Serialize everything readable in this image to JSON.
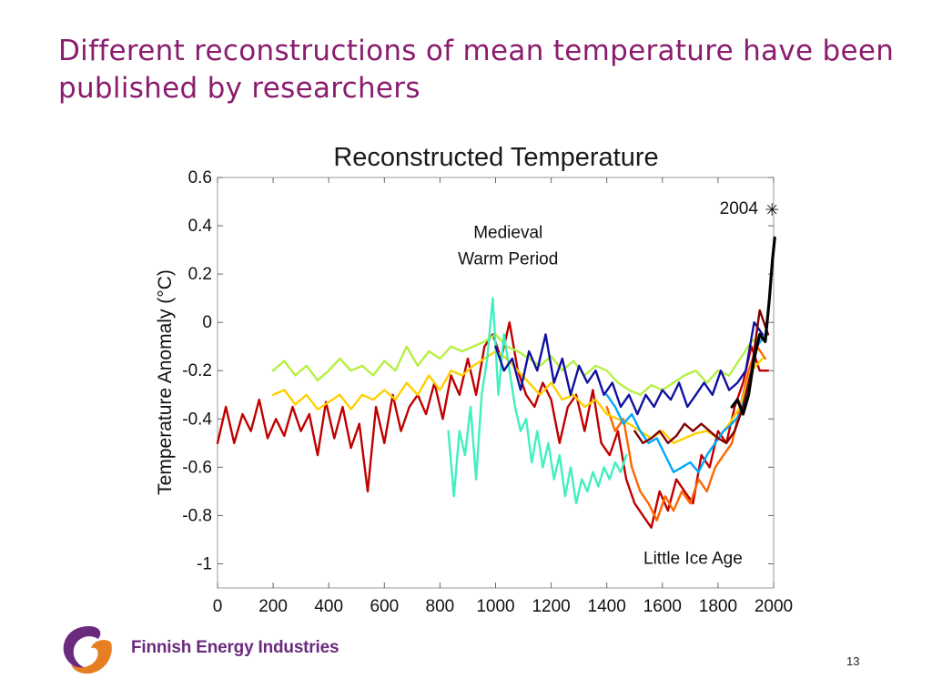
{
  "slide": {
    "title": "Different reconstructions of mean temperature have been published by researchers",
    "page_number": "13",
    "logo_text": "Finnish Energy Industries",
    "logo_colors": {
      "purple": "#6a2a7e",
      "orange": "#e67e22"
    }
  },
  "chart_data": {
    "type": "line",
    "title": "Reconstructed Temperature",
    "xlabel": "",
    "ylabel": "Temperature Anomaly (°C)",
    "xlim": [
      0,
      2000
    ],
    "ylim": [
      -1.1,
      0.6
    ],
    "x_ticks": [
      "0",
      "200",
      "400",
      "600",
      "800",
      "1000",
      "1200",
      "1400",
      "1600",
      "1800",
      "2000"
    ],
    "y_ticks": [
      "0.6",
      "0.4",
      "0.2",
      "0",
      "-0.2",
      "-0.4",
      "-0.6",
      "-0.8",
      "-1"
    ],
    "grid": false,
    "annotations": [
      {
        "text": "Medieval",
        "x": 1045,
        "y": 0.35
      },
      {
        "text": "Warm Period",
        "x": 1045,
        "y": 0.24
      },
      {
        "text": "Little Ice Age",
        "x": 1710,
        "y": -1.0
      },
      {
        "text": "2004",
        "x": 1875,
        "y": 0.45
      }
    ],
    "marker": {
      "symbol": "✳",
      "x": 2004,
      "y": 0.45
    },
    "series": [
      {
        "color": "#c00000",
        "x": [
          0,
          30,
          60,
          90,
          120,
          150,
          180,
          210,
          240,
          270,
          300,
          330,
          360,
          390,
          420,
          450,
          480,
          510,
          540,
          570,
          600,
          630,
          660,
          690,
          720,
          750,
          780,
          810,
          840,
          870,
          900,
          930,
          960,
          990,
          1020,
          1050,
          1080,
          1110,
          1140,
          1170,
          1200,
          1230,
          1260,
          1290,
          1320,
          1350,
          1380,
          1410,
          1440,
          1470,
          1500,
          1530,
          1560,
          1590,
          1620,
          1650,
          1680,
          1710,
          1740,
          1770,
          1800,
          1830,
          1860,
          1890,
          1920,
          1950,
          1980
        ],
        "y": [
          -0.5,
          -0.35,
          -0.5,
          -0.38,
          -0.45,
          -0.32,
          -0.48,
          -0.4,
          -0.47,
          -0.35,
          -0.45,
          -0.38,
          -0.55,
          -0.33,
          -0.48,
          -0.35,
          -0.52,
          -0.42,
          -0.7,
          -0.35,
          -0.5,
          -0.3,
          -0.45,
          -0.35,
          -0.3,
          -0.38,
          -0.25,
          -0.4,
          -0.22,
          -0.3,
          -0.15,
          -0.3,
          -0.1,
          -0.05,
          -0.15,
          0.0,
          -0.2,
          -0.3,
          -0.35,
          -0.25,
          -0.32,
          -0.5,
          -0.35,
          -0.3,
          -0.45,
          -0.28,
          -0.5,
          -0.55,
          -0.45,
          -0.65,
          -0.75,
          -0.8,
          -0.85,
          -0.7,
          -0.78,
          -0.65,
          -0.7,
          -0.75,
          -0.55,
          -0.6,
          -0.45,
          -0.5,
          -0.35,
          -0.25,
          -0.1,
          -0.2,
          -0.2
        ]
      },
      {
        "color": "#ff6600",
        "x": [
          1400,
          1430,
          1460,
          1490,
          1520,
          1550,
          1580,
          1610,
          1640,
          1670,
          1700,
          1730,
          1760,
          1790,
          1820,
          1850,
          1880,
          1910,
          1940,
          1970
        ],
        "y": [
          -0.35,
          -0.45,
          -0.4,
          -0.6,
          -0.7,
          -0.75,
          -0.82,
          -0.72,
          -0.78,
          -0.7,
          -0.75,
          -0.65,
          -0.7,
          -0.6,
          -0.55,
          -0.5,
          -0.35,
          -0.2,
          -0.1,
          -0.15
        ]
      },
      {
        "color": "#ffd000",
        "x": [
          200,
          240,
          280,
          320,
          360,
          400,
          440,
          480,
          520,
          560,
          600,
          640,
          680,
          720,
          760,
          800,
          840,
          880,
          920,
          960,
          1000,
          1040,
          1080,
          1120,
          1160,
          1200,
          1240,
          1280,
          1320,
          1360,
          1400,
          1440,
          1480,
          1520,
          1560,
          1600,
          1640,
          1680,
          1720,
          1760,
          1800,
          1840,
          1880,
          1920,
          1960
        ],
        "y": [
          -0.3,
          -0.28,
          -0.34,
          -0.3,
          -0.36,
          -0.33,
          -0.3,
          -0.36,
          -0.3,
          -0.32,
          -0.28,
          -0.32,
          -0.25,
          -0.3,
          -0.22,
          -0.28,
          -0.2,
          -0.22,
          -0.18,
          -0.15,
          -0.12,
          -0.15,
          -0.2,
          -0.25,
          -0.3,
          -0.25,
          -0.32,
          -0.3,
          -0.35,
          -0.32,
          -0.38,
          -0.4,
          -0.42,
          -0.45,
          -0.48,
          -0.45,
          -0.5,
          -0.48,
          -0.46,
          -0.45,
          -0.48,
          -0.42,
          -0.35,
          -0.2,
          -0.15
        ]
      },
      {
        "color": "#b5f041",
        "x": [
          200,
          240,
          280,
          320,
          360,
          400,
          440,
          480,
          520,
          560,
          600,
          640,
          680,
          720,
          760,
          800,
          840,
          880,
          920,
          960,
          1000,
          1040,
          1080,
          1120,
          1160,
          1200,
          1240,
          1280,
          1320,
          1360,
          1400,
          1440,
          1480,
          1520,
          1560,
          1600,
          1640,
          1680,
          1720,
          1760,
          1800,
          1840,
          1880,
          1920,
          1960
        ],
        "y": [
          -0.2,
          -0.16,
          -0.22,
          -0.18,
          -0.24,
          -0.2,
          -0.15,
          -0.2,
          -0.18,
          -0.22,
          -0.16,
          -0.2,
          -0.1,
          -0.18,
          -0.12,
          -0.15,
          -0.1,
          -0.12,
          -0.1,
          -0.08,
          -0.05,
          -0.1,
          -0.12,
          -0.15,
          -0.18,
          -0.14,
          -0.2,
          -0.16,
          -0.22,
          -0.18,
          -0.2,
          -0.25,
          -0.28,
          -0.3,
          -0.26,
          -0.28,
          -0.25,
          -0.22,
          -0.2,
          -0.25,
          -0.2,
          -0.22,
          -0.15,
          -0.08,
          -0.05
        ]
      },
      {
        "color": "#40f0c0",
        "x": [
          830,
          850,
          870,
          890,
          910,
          930,
          950,
          970,
          990,
          1010,
          1030,
          1050,
          1070,
          1090,
          1110,
          1130,
          1150,
          1170,
          1190,
          1210,
          1230,
          1250,
          1270,
          1290,
          1310,
          1330,
          1350,
          1370,
          1390,
          1410,
          1430,
          1450,
          1470
        ],
        "y": [
          -0.45,
          -0.72,
          -0.45,
          -0.55,
          -0.35,
          -0.65,
          -0.3,
          -0.15,
          0.1,
          -0.3,
          -0.05,
          -0.2,
          -0.35,
          -0.45,
          -0.4,
          -0.58,
          -0.45,
          -0.6,
          -0.5,
          -0.65,
          -0.55,
          -0.72,
          -0.6,
          -0.75,
          -0.65,
          -0.7,
          -0.62,
          -0.68,
          -0.6,
          -0.65,
          -0.58,
          -0.62,
          -0.55
        ]
      },
      {
        "color": "#00a8ff",
        "x": [
          1400,
          1430,
          1460,
          1490,
          1520,
          1550,
          1580,
          1610,
          1640,
          1670,
          1700,
          1730,
          1760,
          1790,
          1820,
          1850,
          1880,
          1910,
          1940,
          1970
        ],
        "y": [
          -0.3,
          -0.35,
          -0.42,
          -0.38,
          -0.45,
          -0.5,
          -0.48,
          -0.55,
          -0.62,
          -0.6,
          -0.58,
          -0.62,
          -0.55,
          -0.5,
          -0.45,
          -0.42,
          -0.38,
          -0.25,
          -0.1,
          -0.05
        ]
      },
      {
        "color": "#1010a0",
        "x": [
          1000,
          1030,
          1060,
          1090,
          1120,
          1150,
          1180,
          1210,
          1240,
          1270,
          1300,
          1330,
          1360,
          1390,
          1420,
          1450,
          1480,
          1510,
          1540,
          1570,
          1600,
          1630,
          1660,
          1690,
          1720,
          1750,
          1780,
          1810,
          1840,
          1870,
          1900,
          1930,
          1960
        ],
        "y": [
          -0.1,
          -0.2,
          -0.15,
          -0.28,
          -0.12,
          -0.2,
          -0.05,
          -0.25,
          -0.15,
          -0.3,
          -0.18,
          -0.25,
          -0.2,
          -0.3,
          -0.25,
          -0.35,
          -0.3,
          -0.38,
          -0.3,
          -0.35,
          -0.28,
          -0.32,
          -0.25,
          -0.35,
          -0.3,
          -0.25,
          -0.3,
          -0.2,
          -0.28,
          -0.25,
          -0.2,
          0.0,
          -0.05
        ]
      },
      {
        "color": "#800000",
        "x": [
          1500,
          1530,
          1560,
          1590,
          1620,
          1650,
          1680,
          1710,
          1740,
          1770,
          1800,
          1830,
          1860,
          1890,
          1920,
          1950,
          1980
        ],
        "y": [
          -0.45,
          -0.5,
          -0.48,
          -0.45,
          -0.5,
          -0.47,
          -0.42,
          -0.45,
          -0.42,
          -0.45,
          -0.48,
          -0.5,
          -0.45,
          -0.35,
          -0.2,
          0.05,
          -0.05
        ]
      },
      {
        "color": "#000000",
        "x": [
          1850,
          1870,
          1890,
          1910,
          1930,
          1950,
          1970,
          1985,
          1995,
          2004
        ],
        "y": [
          -0.35,
          -0.32,
          -0.38,
          -0.3,
          -0.15,
          -0.05,
          -0.08,
          0.1,
          0.25,
          0.35
        ]
      }
    ]
  }
}
